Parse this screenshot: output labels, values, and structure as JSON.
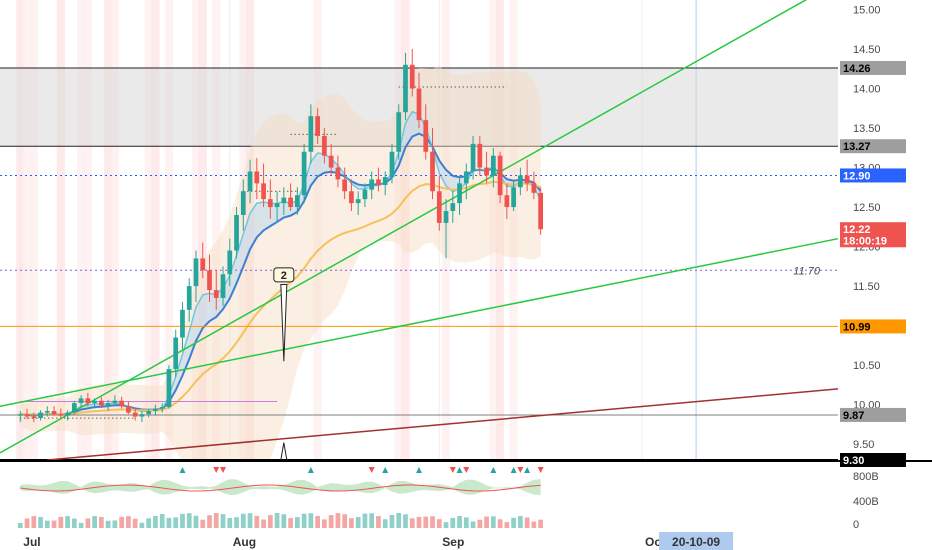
{
  "chart_data": {
    "type": "candlestick",
    "price_axis": {
      "ylim": [
        9.3,
        15.12
      ],
      "ticks": [
        "15.00",
        "14.50",
        "14.00",
        "13.50",
        "13.00",
        "12.50",
        "12.00",
        "11.50",
        "11.00",
        "10.50",
        "10.00",
        "9.50"
      ]
    },
    "time_axis": {
      "labels": [
        {
          "label": "Jul",
          "day": 0
        },
        {
          "label": "Aug",
          "day": 31
        },
        {
          "label": "Sep",
          "day": 62
        },
        {
          "label": "Oct",
          "day": 92
        }
      ],
      "cursor_label": "20-10-09",
      "cursor_day": 100,
      "range_days": [
        -3,
        121
      ]
    },
    "price_badges": [
      {
        "label": "14.26",
        "value": 14.26,
        "bg": "#9e9e9e",
        "fg": "#000000"
      },
      {
        "label": "13.27",
        "value": 13.27,
        "bg": "#9e9e9e",
        "fg": "#000000"
      },
      {
        "label": "12.90",
        "value": 12.9,
        "bg": "#2962ff",
        "fg": "#ffffff"
      },
      {
        "label": "12.22",
        "value": 12.22,
        "bg": "#ef5350",
        "fg": "#ffffff"
      },
      {
        "label": "18:00:19",
        "value": 12.08,
        "bg": "#ef5350",
        "fg": "#ffffff"
      },
      {
        "label": "10.99",
        "value": 10.99,
        "bg": "#ff9800",
        "fg": "#000000"
      },
      {
        "label": "9.87",
        "value": 9.87,
        "bg": "#9e9e9e",
        "fg": "#000000"
      },
      {
        "label": "9.30",
        "value": 9.3,
        "bg": "#000000",
        "fg": "#ffffff"
      }
    ],
    "annotation": {
      "label": "11.70",
      "value": 11.7
    },
    "callout": {
      "label": "2",
      "day": 39,
      "value": 10.55
    },
    "zone": {
      "top": 14.26,
      "bottom": 13.27
    },
    "levels": {
      "current": 12.9,
      "dotted_purple": 11.7,
      "orange": 10.99,
      "support": 9.87,
      "bottom": 9.3
    },
    "trendlines": [
      {
        "name": "upper",
        "color": "#27c93f",
        "points": [
          [
            -3,
            9.39
          ],
          [
            121,
            15.35
          ]
        ]
      },
      {
        "name": "lower",
        "color": "#27c93f",
        "points": [
          [
            -3,
            9.98
          ],
          [
            121,
            12.1
          ]
        ]
      },
      {
        "name": "long",
        "color": "#a0312f",
        "points": [
          [
            4,
            9.3
          ],
          [
            121,
            10.2
          ]
        ]
      }
    ],
    "ohlc": [
      [
        0,
        9.86,
        9.92,
        9.78,
        9.88
      ],
      [
        1,
        9.88,
        9.95,
        9.82,
        9.85
      ],
      [
        2,
        9.85,
        9.9,
        9.78,
        9.83
      ],
      [
        3,
        9.83,
        9.93,
        9.8,
        9.9
      ],
      [
        4,
        9.9,
        9.98,
        9.85,
        9.92
      ],
      [
        5,
        9.92,
        9.98,
        9.86,
        9.88
      ],
      [
        6,
        9.88,
        9.95,
        9.82,
        9.86
      ],
      [
        7,
        9.86,
        9.93,
        9.8,
        9.9
      ],
      [
        8,
        9.9,
        10.05,
        9.88,
        10.02
      ],
      [
        9,
        10.02,
        10.12,
        9.97,
        10.08
      ],
      [
        10,
        10.08,
        10.15,
        9.98,
        10.02
      ],
      [
        11,
        10.02,
        10.08,
        9.95,
        10.05
      ],
      [
        12,
        10.05,
        10.1,
        9.96,
        9.99
      ],
      [
        13,
        9.99,
        10.06,
        9.92,
        10.02
      ],
      [
        14,
        10.02,
        10.12,
        9.98,
        10.05
      ],
      [
        15,
        10.05,
        10.1,
        9.95,
        9.98
      ],
      [
        16,
        9.98,
        10.04,
        9.88,
        9.9
      ],
      [
        17,
        9.9,
        9.96,
        9.8,
        9.85
      ],
      [
        18,
        9.85,
        9.92,
        9.78,
        9.88
      ],
      [
        19,
        9.88,
        9.95,
        9.84,
        9.92
      ],
      [
        20,
        9.92,
        10.0,
        9.86,
        9.95
      ],
      [
        21,
        9.95,
        10.02,
        9.9,
        9.97
      ],
      [
        22,
        9.97,
        10.5,
        9.95,
        10.45
      ],
      [
        23,
        10.45,
        10.95,
        10.35,
        10.85
      ],
      [
        24,
        10.85,
        11.3,
        10.7,
        11.2
      ],
      [
        25,
        11.2,
        11.6,
        11.05,
        11.5
      ],
      [
        26,
        11.5,
        11.95,
        11.3,
        11.85
      ],
      [
        27,
        11.85,
        12.05,
        11.6,
        11.7
      ],
      [
        28,
        11.7,
        11.9,
        11.3,
        11.45
      ],
      [
        29,
        11.45,
        11.7,
        11.2,
        11.35
      ],
      [
        30,
        11.35,
        11.75,
        11.25,
        11.65
      ],
      [
        31,
        11.65,
        12.1,
        11.5,
        11.95
      ],
      [
        32,
        11.95,
        12.5,
        11.85,
        12.4
      ],
      [
        33,
        12.4,
        12.85,
        12.2,
        12.7
      ],
      [
        34,
        12.7,
        13.1,
        12.55,
        12.95
      ],
      [
        35,
        12.95,
        13.12,
        12.6,
        12.8
      ],
      [
        36,
        12.8,
        13.05,
        12.5,
        12.6
      ],
      [
        37,
        12.6,
        12.85,
        12.35,
        12.5
      ],
      [
        38,
        12.5,
        12.7,
        12.3,
        12.55
      ],
      [
        39,
        12.55,
        12.75,
        12.4,
        12.62
      ],
      [
        40,
        12.62,
        12.8,
        12.45,
        12.5
      ],
      [
        41,
        12.5,
        12.75,
        12.4,
        12.65
      ],
      [
        42,
        12.65,
        13.3,
        12.55,
        13.2
      ],
      [
        43,
        13.2,
        13.8,
        13.05,
        13.65
      ],
      [
        44,
        13.65,
        13.75,
        13.3,
        13.4
      ],
      [
        45,
        13.4,
        13.5,
        13.05,
        13.15
      ],
      [
        46,
        13.15,
        13.3,
        12.9,
        13.0
      ],
      [
        47,
        13.0,
        13.15,
        12.75,
        12.85
      ],
      [
        48,
        12.85,
        13.0,
        12.6,
        12.7
      ],
      [
        49,
        12.7,
        12.85,
        12.45,
        12.55
      ],
      [
        50,
        12.55,
        12.7,
        12.4,
        12.6
      ],
      [
        51,
        12.6,
        12.8,
        12.5,
        12.72
      ],
      [
        52,
        12.72,
        12.95,
        12.6,
        12.85
      ],
      [
        53,
        12.85,
        13.0,
        12.7,
        12.78
      ],
      [
        54,
        12.78,
        12.95,
        12.65,
        12.88
      ],
      [
        55,
        12.88,
        13.3,
        12.8,
        13.2
      ],
      [
        56,
        13.2,
        13.8,
        13.1,
        13.7
      ],
      [
        57,
        13.7,
        14.45,
        13.6,
        14.3
      ],
      [
        58,
        14.3,
        14.5,
        13.9,
        14.0
      ],
      [
        59,
        14.0,
        14.2,
        13.5,
        13.6
      ],
      [
        60,
        13.6,
        13.8,
        13.1,
        13.2
      ],
      [
        61,
        13.2,
        13.5,
        12.6,
        12.7
      ],
      [
        62,
        12.7,
        12.9,
        12.2,
        12.3
      ],
      [
        63,
        12.3,
        12.6,
        11.85,
        12.45
      ],
      [
        64,
        12.45,
        12.7,
        12.3,
        12.55
      ],
      [
        65,
        12.55,
        12.9,
        12.4,
        12.8
      ],
      [
        66,
        12.8,
        13.05,
        12.6,
        12.95
      ],
      [
        67,
        12.95,
        13.4,
        12.85,
        13.3
      ],
      [
        68,
        13.3,
        13.4,
        12.9,
        13.0
      ],
      [
        69,
        13.0,
        13.2,
        12.8,
        12.9
      ],
      [
        70,
        12.9,
        13.25,
        12.75,
        13.15
      ],
      [
        71,
        13.15,
        13.2,
        12.55,
        12.65
      ],
      [
        72,
        12.65,
        12.8,
        12.35,
        12.5
      ],
      [
        73,
        12.5,
        12.85,
        12.45,
        12.75
      ],
      [
        74,
        12.75,
        13.0,
        12.65,
        12.9
      ],
      [
        75,
        12.9,
        13.1,
        12.7,
        12.8
      ],
      [
        76,
        12.8,
        12.95,
        12.6,
        12.68
      ],
      [
        77,
        12.68,
        12.75,
        12.15,
        12.22
      ]
    ]
  }
}
